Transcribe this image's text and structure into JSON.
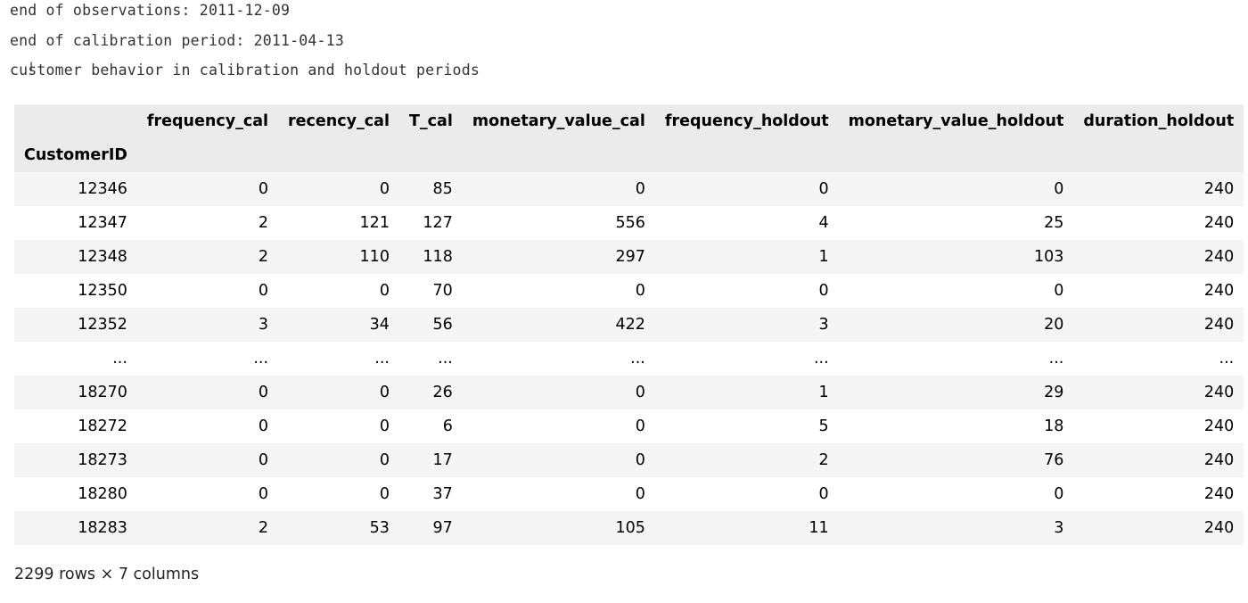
{
  "stdout": {
    "lines": [
      "end of observations: 2011-12-09",
      "end of calibration period: 2011-04-13",
      "customer behavior in calibration and holdout periods"
    ]
  },
  "dataframe": {
    "index_name": "CustomerID",
    "columns": [
      "frequency_cal",
      "recency_cal",
      "T_cal",
      "monetary_value_cal",
      "frequency_holdout",
      "monetary_value_holdout",
      "duration_holdout"
    ],
    "rows": [
      {
        "index": "12346",
        "values": [
          "0",
          "0",
          "85",
          "0",
          "0",
          "0",
          "240"
        ]
      },
      {
        "index": "12347",
        "values": [
          "2",
          "121",
          "127",
          "556",
          "4",
          "25",
          "240"
        ]
      },
      {
        "index": "12348",
        "values": [
          "2",
          "110",
          "118",
          "297",
          "1",
          "103",
          "240"
        ]
      },
      {
        "index": "12350",
        "values": [
          "0",
          "0",
          "70",
          "0",
          "0",
          "0",
          "240"
        ]
      },
      {
        "index": "12352",
        "values": [
          "3",
          "34",
          "56",
          "422",
          "3",
          "20",
          "240"
        ]
      },
      {
        "index": "...",
        "values": [
          "...",
          "...",
          "...",
          "...",
          "...",
          "...",
          "..."
        ]
      },
      {
        "index": "18270",
        "values": [
          "0",
          "0",
          "26",
          "0",
          "1",
          "29",
          "240"
        ]
      },
      {
        "index": "18272",
        "values": [
          "0",
          "0",
          "6",
          "0",
          "5",
          "18",
          "240"
        ]
      },
      {
        "index": "18273",
        "values": [
          "0",
          "0",
          "17",
          "0",
          "2",
          "76",
          "240"
        ]
      },
      {
        "index": "18280",
        "values": [
          "0",
          "0",
          "37",
          "0",
          "0",
          "0",
          "240"
        ]
      },
      {
        "index": "18283",
        "values": [
          "2",
          "53",
          "97",
          "105",
          "11",
          "3",
          "240"
        ]
      }
    ],
    "shape_text": "2299 rows × 7 columns"
  }
}
